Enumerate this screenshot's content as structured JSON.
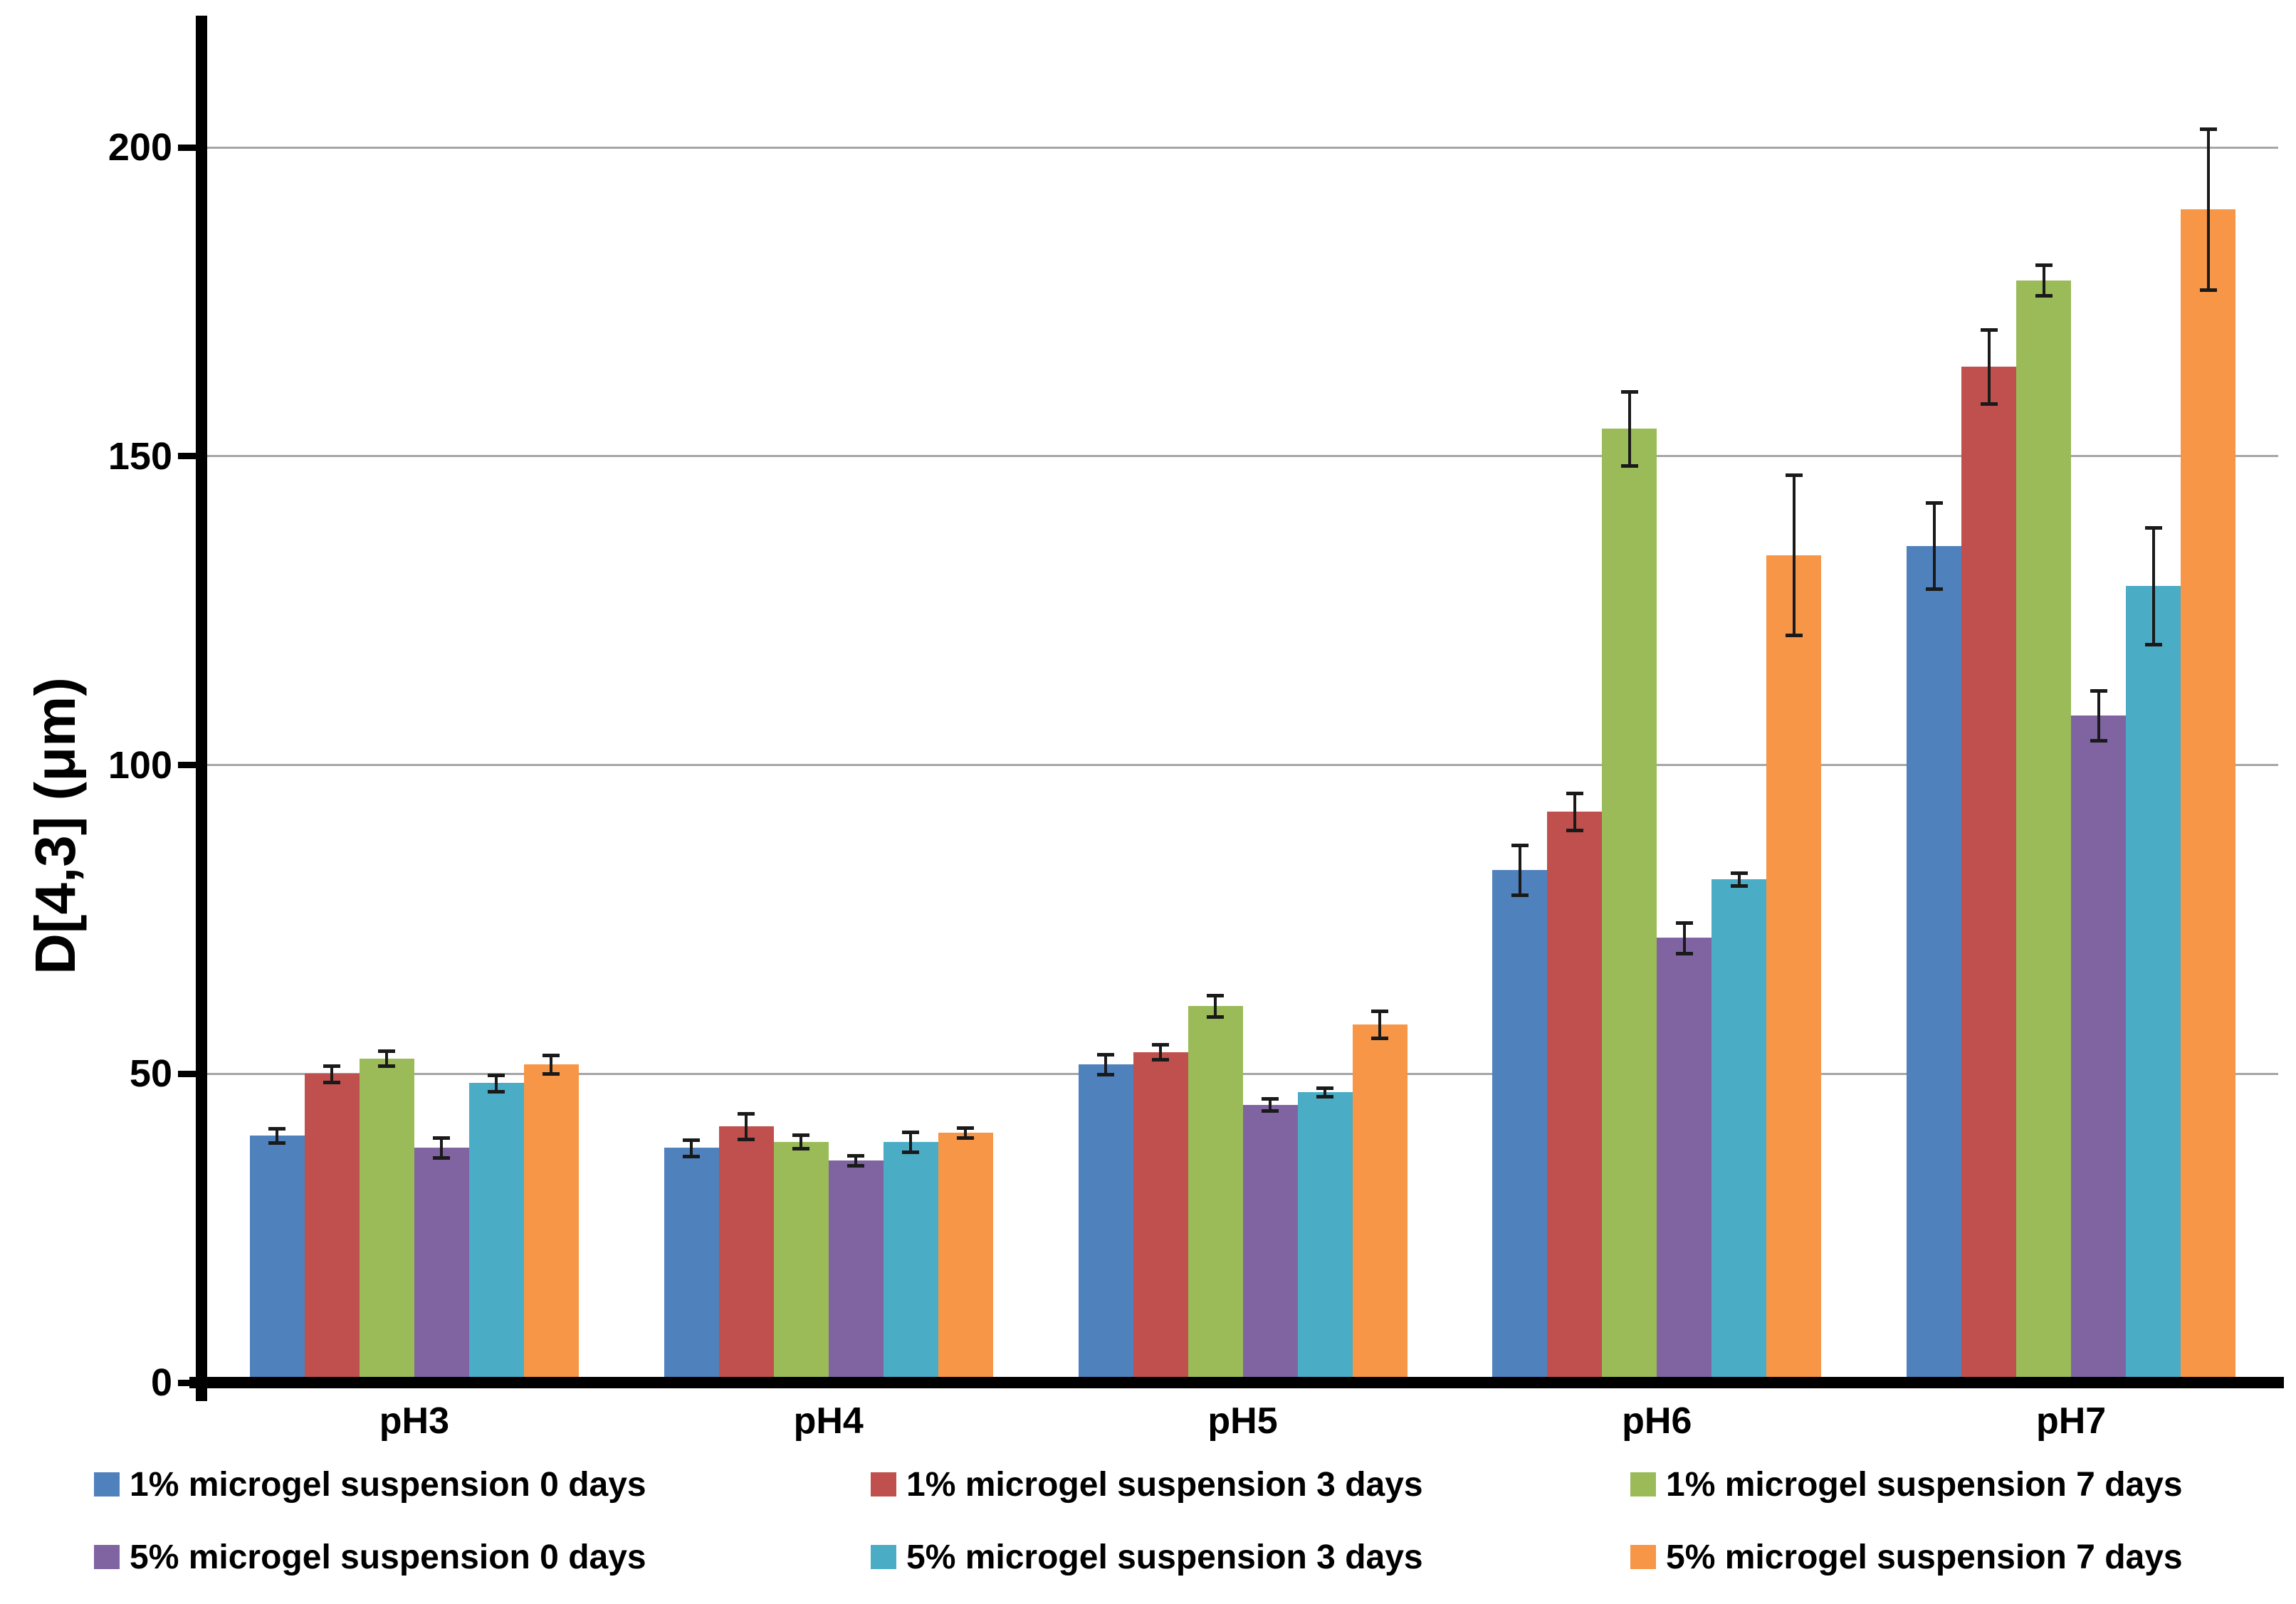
{
  "chart_data": {
    "type": "bar",
    "title": "",
    "ylabel": "D[4,3] (μm)",
    "xlabel": "",
    "categories": [
      "pH3",
      "pH4",
      "pH5",
      "pH6",
      "pH7"
    ],
    "y_ticks": [
      0,
      50,
      100,
      150,
      200
    ],
    "ylim": [
      0,
      221
    ],
    "grid": true,
    "legend_position": "bottom",
    "error_bars": true,
    "series": [
      {
        "name": "1% microgel suspension 0 days",
        "color": "#4F81BD",
        "values": [
          40,
          38,
          51.5,
          83,
          135.5
        ],
        "errors": [
          1.2,
          1.3,
          1.6,
          4,
          7
        ]
      },
      {
        "name": "1% microgel suspension 3 days",
        "color": "#C0504D",
        "values": [
          50,
          41.5,
          53.5,
          92.5,
          164.5
        ],
        "errors": [
          1.3,
          2.1,
          1.2,
          3,
          6
        ]
      },
      {
        "name": "1% microgel suspension 7 days",
        "color": "#9BBB59",
        "values": [
          52.5,
          39,
          61,
          154.5,
          178.5
        ],
        "errors": [
          1.2,
          1.1,
          1.7,
          6,
          2.5
        ]
      },
      {
        "name": "5% microgel suspension 0 days",
        "color": "#8064A2",
        "values": [
          38,
          36,
          45,
          72,
          108
        ],
        "errors": [
          1.6,
          0.8,
          1.0,
          2.5,
          4
        ]
      },
      {
        "name": "5% microgel suspension 3 days",
        "color": "#4BACC6",
        "values": [
          48.5,
          39,
          47,
          81.5,
          129
        ],
        "errors": [
          1.3,
          1.6,
          0.7,
          1,
          9.5
        ]
      },
      {
        "name": "5% microgel suspension 7 days",
        "color": "#F79646",
        "values": [
          51.5,
          40.5,
          58,
          134,
          190
        ],
        "errors": [
          1.5,
          0.8,
          2.2,
          13,
          13
        ]
      }
    ],
    "colors": {
      "background": "#ffffff",
      "gridline": "#a6a6a6",
      "axis": "#000000",
      "error_bar": "#1a1a1a",
      "text": "#000000"
    }
  }
}
